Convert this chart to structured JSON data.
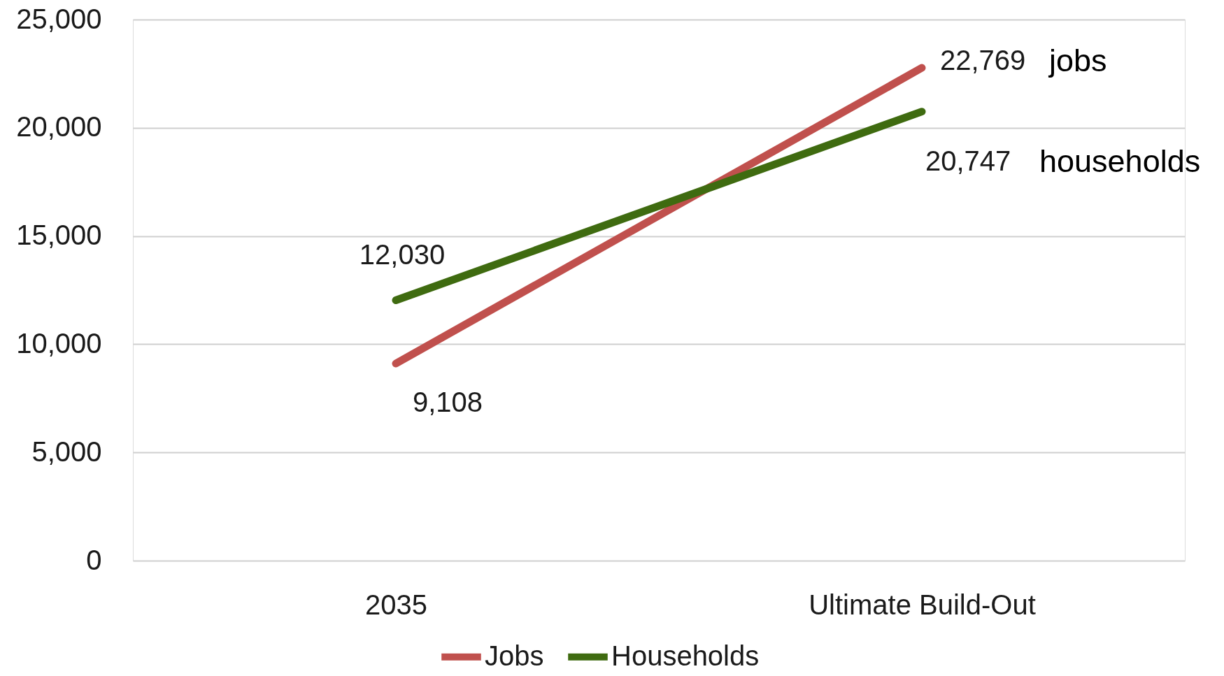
{
  "chart_data": {
    "type": "line",
    "categories": [
      "2035",
      "Ultimate Build-Out"
    ],
    "series": [
      {
        "name": "Jobs",
        "color": "#c0504d",
        "values": [
          9108,
          22769
        ],
        "value_labels": [
          "9,108",
          "22,769"
        ]
      },
      {
        "name": "Households",
        "color": "#3f6b10",
        "values": [
          12030,
          20747
        ],
        "value_labels": [
          "12,030",
          "20,747"
        ]
      }
    ],
    "ylim": [
      0,
      25000
    ],
    "yticks": [
      {
        "value": 0,
        "label": "0"
      },
      {
        "value": 5000,
        "label": "5,000"
      },
      {
        "value": 10000,
        "label": "10,000"
      },
      {
        "value": 15000,
        "label": "15,000"
      },
      {
        "value": 20000,
        "label": "20,000"
      },
      {
        "value": 25000,
        "label": "25,000"
      }
    ],
    "grid": "y",
    "legend": "bottom",
    "line_style": "solid",
    "annotations": [
      "jobs",
      "households"
    ]
  }
}
